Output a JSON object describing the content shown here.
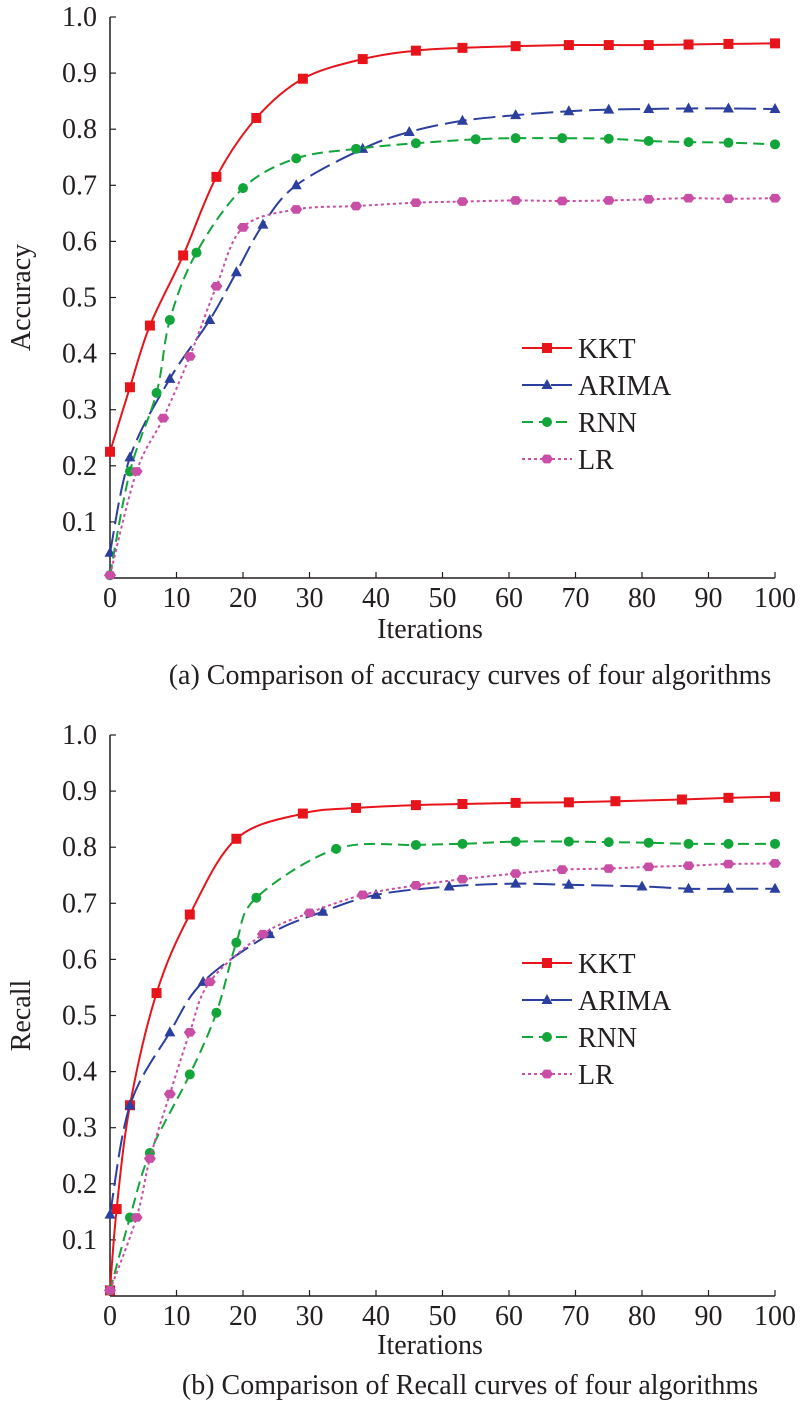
{
  "colors": {
    "KKT": "#e8141b",
    "ARIMA": "#2b3f9e",
    "RNN": "#12a53a",
    "LR": "#c94fa6",
    "axis": "#231f20"
  },
  "chart_data": [
    {
      "type": "line",
      "caption": "(a) Comparison of accuracy curves of four algorithms",
      "xlabel": "Iterations",
      "ylabel": "Accuracy",
      "xlim": [
        0,
        100
      ],
      "ylim": [
        0,
        1.0
      ],
      "xticks": [
        "0",
        "10",
        "20",
        "30",
        "40",
        "50",
        "60",
        "70",
        "80",
        "90",
        "100"
      ],
      "yticks": [
        "0.1",
        "0.2",
        "0.3",
        "0.4",
        "0.5",
        "0.6",
        "0.7",
        "0.8",
        "0.9",
        "1.0"
      ],
      "legend_position": "center-right",
      "series": [
        {
          "name": "KKT",
          "marker": "square",
          "style": "solid",
          "points": [
            [
              0,
              0.225
            ],
            [
              3,
              0.34
            ],
            [
              6,
              0.45
            ],
            [
              11,
              0.575
            ],
            [
              16,
              0.715
            ],
            [
              22,
              0.82
            ],
            [
              29,
              0.89
            ],
            [
              38,
              0.925
            ],
            [
              46,
              0.94
            ],
            [
              53,
              0.945
            ],
            [
              61,
              0.948
            ],
            [
              69,
              0.95
            ],
            [
              75,
              0.95
            ],
            [
              81,
              0.95
            ],
            [
              87,
              0.951
            ],
            [
              93,
              0.952
            ],
            [
              100,
              0.953
            ]
          ]
        },
        {
          "name": "ARIMA",
          "marker": "triangle",
          "style": "longdash",
          "points": [
            [
              0,
              0.045
            ],
            [
              3,
              0.215
            ],
            [
              9,
              0.355
            ],
            [
              15,
              0.46
            ],
            [
              19,
              0.545
            ],
            [
              23,
              0.63
            ],
            [
              28,
              0.7
            ],
            [
              38,
              0.765
            ],
            [
              45,
              0.795
            ],
            [
              53,
              0.815
            ],
            [
              61,
              0.825
            ],
            [
              69,
              0.832
            ],
            [
              75,
              0.835
            ],
            [
              81,
              0.836
            ],
            [
              87,
              0.837
            ],
            [
              93,
              0.837
            ],
            [
              100,
              0.836
            ]
          ]
        },
        {
          "name": "RNN",
          "marker": "circle",
          "style": "dash",
          "points": [
            [
              0,
              0.005
            ],
            [
              3,
              0.19
            ],
            [
              7,
              0.33
            ],
            [
              9,
              0.46
            ],
            [
              13,
              0.58
            ],
            [
              20,
              0.695
            ],
            [
              28,
              0.748
            ],
            [
              37,
              0.765
            ],
            [
              46,
              0.775
            ],
            [
              55,
              0.782
            ],
            [
              61,
              0.784
            ],
            [
              68,
              0.784
            ],
            [
              75,
              0.783
            ],
            [
              81,
              0.779
            ],
            [
              87,
              0.777
            ],
            [
              93,
              0.776
            ],
            [
              100,
              0.773
            ]
          ]
        },
        {
          "name": "LR",
          "marker": "hexagon",
          "style": "dot",
          "points": [
            [
              0,
              0.005
            ],
            [
              4,
              0.19
            ],
            [
              8,
              0.285
            ],
            [
              12,
              0.395
            ],
            [
              16,
              0.52
            ],
            [
              20,
              0.625
            ],
            [
              28,
              0.657
            ],
            [
              37,
              0.663
            ],
            [
              46,
              0.669
            ],
            [
              53,
              0.671
            ],
            [
              61,
              0.673
            ],
            [
              68,
              0.672
            ],
            [
              75,
              0.673
            ],
            [
              81,
              0.675
            ],
            [
              87,
              0.677
            ],
            [
              93,
              0.676
            ],
            [
              100,
              0.677
            ]
          ]
        }
      ]
    },
    {
      "type": "line",
      "caption": "(b) Comparison of Recall curves of four algorithms",
      "xlabel": "Iterations",
      "ylabel": "Recall",
      "xlim": [
        0,
        100
      ],
      "ylim": [
        0,
        1.0
      ],
      "xticks": [
        "0",
        "10",
        "20",
        "30",
        "40",
        "50",
        "60",
        "70",
        "80",
        "90",
        "100"
      ],
      "yticks": [
        "0.1",
        "0.2",
        "0.3",
        "0.4",
        "0.5",
        "0.6",
        "0.7",
        "0.8",
        "0.9",
        "1.0"
      ],
      "legend_position": "center-right",
      "series": [
        {
          "name": "KKT",
          "marker": "square",
          "style": "solid",
          "points": [
            [
              0,
              0.01
            ],
            [
              1,
              0.155
            ],
            [
              3,
              0.34
            ],
            [
              7,
              0.54
            ],
            [
              12,
              0.68
            ],
            [
              19,
              0.815
            ],
            [
              29,
              0.86
            ],
            [
              37,
              0.87
            ],
            [
              46,
              0.875
            ],
            [
              53,
              0.877
            ],
            [
              61,
              0.879
            ],
            [
              69,
              0.88
            ],
            [
              76,
              0.882
            ],
            [
              86,
              0.885
            ],
            [
              93,
              0.888
            ],
            [
              100,
              0.89
            ]
          ]
        },
        {
          "name": "ARIMA",
          "marker": "triangle",
          "style": "longdash",
          "points": [
            [
              0,
              0.145
            ],
            [
              3,
              0.34
            ],
            [
              9,
              0.47
            ],
            [
              14,
              0.56
            ],
            [
              24,
              0.645
            ],
            [
              32,
              0.685
            ],
            [
              40,
              0.715
            ],
            [
              51,
              0.73
            ],
            [
              61,
              0.735
            ],
            [
              69,
              0.733
            ],
            [
              80,
              0.73
            ],
            [
              87,
              0.726
            ],
            [
              93,
              0.726
            ],
            [
              100,
              0.726
            ]
          ]
        },
        {
          "name": "RNN",
          "marker": "circle",
          "style": "dash",
          "points": [
            [
              0,
              0.01
            ],
            [
              3,
              0.14
            ],
            [
              6,
              0.255
            ],
            [
              12,
              0.395
            ],
            [
              16,
              0.505
            ],
            [
              19,
              0.63
            ],
            [
              22,
              0.71
            ],
            [
              34,
              0.797
            ],
            [
              46,
              0.804
            ],
            [
              53,
              0.806
            ],
            [
              61,
              0.81
            ],
            [
              69,
              0.81
            ],
            [
              75,
              0.809
            ],
            [
              81,
              0.808
            ],
            [
              87,
              0.806
            ],
            [
              93,
              0.806
            ],
            [
              100,
              0.806
            ]
          ]
        },
        {
          "name": "LR",
          "marker": "hexagon",
          "style": "dot",
          "points": [
            [
              0,
              0.01
            ],
            [
              4,
              0.14
            ],
            [
              6,
              0.245
            ],
            [
              9,
              0.36
            ],
            [
              12,
              0.47
            ],
            [
              15,
              0.56
            ],
            [
              23,
              0.645
            ],
            [
              30,
              0.683
            ],
            [
              38,
              0.715
            ],
            [
              46,
              0.732
            ],
            [
              53,
              0.743
            ],
            [
              61,
              0.753
            ],
            [
              68,
              0.76
            ],
            [
              75,
              0.762
            ],
            [
              81,
              0.765
            ],
            [
              87,
              0.767
            ],
            [
              93,
              0.77
            ],
            [
              100,
              0.771
            ]
          ]
        }
      ]
    }
  ]
}
